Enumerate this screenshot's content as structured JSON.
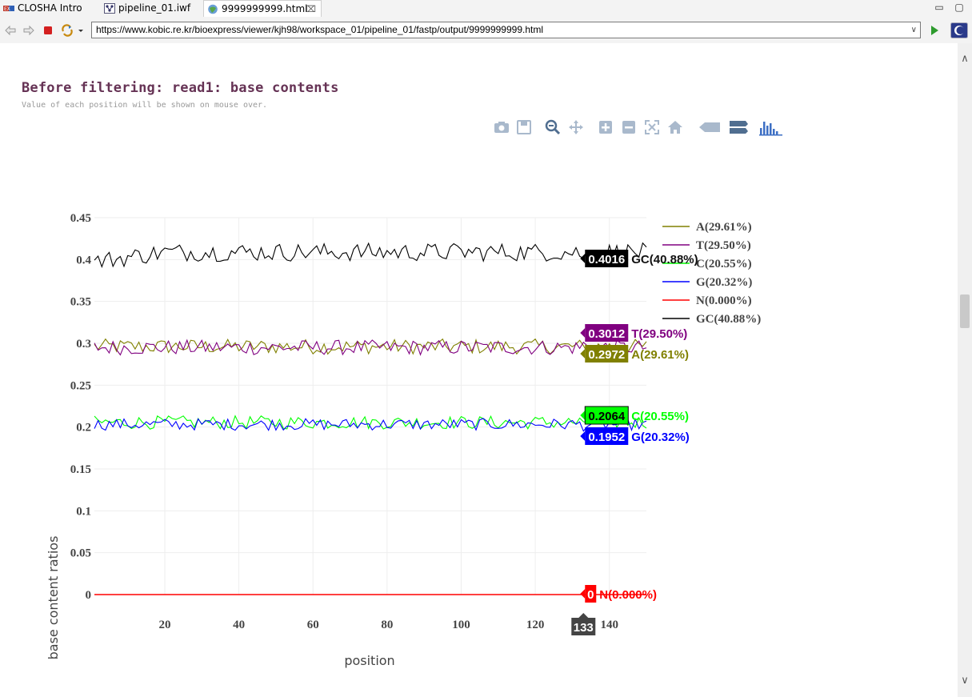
{
  "tabs": [
    {
      "label": "CLOSHA Intro",
      "icon": "closha-icon"
    },
    {
      "label": "pipeline_01.iwf",
      "icon": "workflow-icon"
    },
    {
      "label": "9999999999.html",
      "icon": "globe-icon",
      "close": "⌧"
    }
  ],
  "window": {
    "minimize": "▭",
    "maximize": "▢"
  },
  "address": {
    "url": "https://www.kobic.re.kr/bioexpress/viewer/kjh98/workspace_01/pipeline_01/fastp/output/9999999999.html"
  },
  "page": {
    "title": "Before filtering: read1: base contents",
    "subtitle": "Value of each position will be shown on mouse over."
  },
  "colors": {
    "A": "#808000",
    "T": "#800080",
    "C": "#00ff00",
    "G": "#0000ff",
    "N": "#ff0000",
    "GC": "#000000"
  },
  "chart_data": {
    "type": "line",
    "xlabel": "position",
    "ylabel": "base content ratios",
    "xlim": [
      1,
      150
    ],
    "ylim": [
      0,
      0.45
    ],
    "xticks": [
      "20",
      "40",
      "60",
      "80",
      "100",
      "120",
      "140"
    ],
    "yticks": [
      "0",
      "0.05",
      "0.1",
      "0.15",
      "0.2",
      "0.25",
      "0.3",
      "0.35",
      "0.4",
      "0.45"
    ],
    "legend_position": "right",
    "series": [
      {
        "name": "A(29.61%)",
        "key": "A",
        "mean": 0.2961,
        "hover_value": "0.2972",
        "hover_label": "A(29.61%)"
      },
      {
        "name": "T(29.50%)",
        "key": "T",
        "mean": 0.295,
        "hover_value": "0.3012",
        "hover_label": "T(29.50%)"
      },
      {
        "name": "C(20.55%)",
        "key": "C",
        "mean": 0.2055,
        "hover_value": "0.2064",
        "hover_label": "C(20.55%)"
      },
      {
        "name": "G(20.32%)",
        "key": "G",
        "mean": 0.2032,
        "hover_value": "0.1952",
        "hover_label": "G(20.32%)"
      },
      {
        "name": "N(0.000%)",
        "key": "N",
        "mean": 0.0,
        "hover_value": "0",
        "hover_label": "N(0.000%)"
      },
      {
        "name": "GC(40.88%)",
        "key": "GC",
        "mean": 0.4088,
        "hover_value": "0.4016",
        "hover_label": "GC(40.88%)"
      }
    ],
    "hover_x": "133"
  },
  "modebar_icons": [
    "camera-icon",
    "save-icon",
    "zoom-icon",
    "pan-icon",
    "zoom-in-icon",
    "zoom-out-icon",
    "autoscale-icon",
    "home-icon",
    "hover-closest-icon",
    "hover-compare-icon",
    "plotly-logo-icon"
  ]
}
